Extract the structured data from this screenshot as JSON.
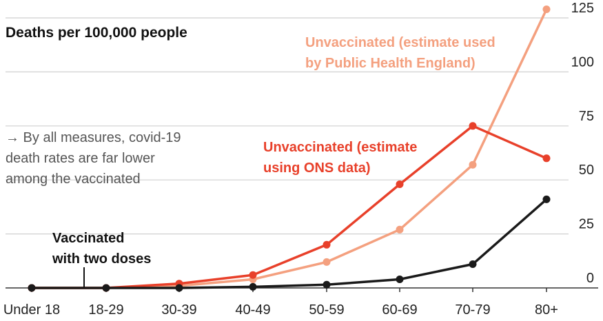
{
  "chart_data": {
    "type": "line",
    "title": "Deaths per 100,000 people",
    "annotation": [
      "→ By all measures, covid-19",
      "death rates are far lower",
      "among the vaccinated"
    ],
    "categories": [
      "Under 18",
      "18-29",
      "30-39",
      "40-49",
      "50-59",
      "60-69",
      "70-79",
      "80+"
    ],
    "yticks": [
      "0",
      "25",
      "50",
      "75",
      "100",
      "125"
    ],
    "ylim": [
      0,
      125
    ],
    "grid": true,
    "series": [
      {
        "name": "Unvaccinated (estimate used by Public Health England)",
        "label_lines": [
          "Unvaccinated (estimate used",
          "by Public Health England)"
        ],
        "color": "#f4a07f",
        "values": [
          0,
          0,
          1,
          4,
          12,
          27,
          57,
          129
        ]
      },
      {
        "name": "Unvaccinated (estimate using ONS data)",
        "label_lines": [
          "Unvaccinated (estimate",
          "using ONS data)"
        ],
        "color": "#e8402a",
        "values": [
          0,
          0,
          2,
          6,
          20,
          48,
          75,
          60
        ]
      },
      {
        "name": "Vaccinated with two doses",
        "label_lines": [
          "Vaccinated",
          "with two doses"
        ],
        "color": "#1a1a1a",
        "values": [
          0,
          0,
          0,
          0.5,
          1.5,
          4,
          11,
          41
        ]
      }
    ]
  }
}
